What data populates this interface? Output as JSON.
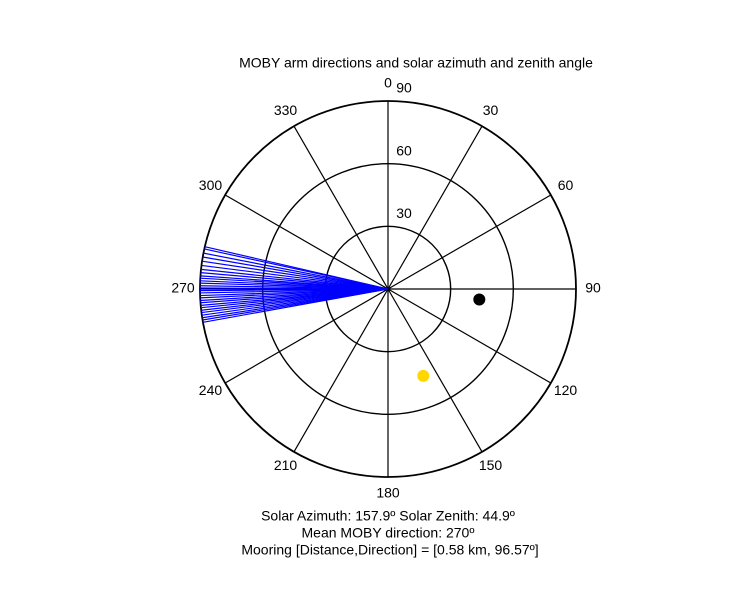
{
  "chart_data": {
    "type": "polar",
    "title": "MOBY arm directions and solar azimuth and zenith angle",
    "rlim": [
      0,
      90
    ],
    "rticks": [
      30,
      60,
      90
    ],
    "thetaticks": [
      0,
      30,
      60,
      90,
      120,
      150,
      180,
      210,
      240,
      270,
      300,
      330
    ],
    "arms": {
      "color": "#0000ff",
      "theta": [
        259.8,
        260.5,
        261.2,
        262,
        262.8,
        263.5,
        264.3,
        265,
        265.8,
        266.5,
        267.3,
        268,
        268.8,
        269.5,
        270.3,
        271,
        271.8,
        272.5,
        273.3,
        274,
        275,
        276,
        277.2,
        278.5,
        279.8,
        281,
        282.3,
        283
      ]
    },
    "points": [
      {
        "color": "#000000",
        "theta": 96.57,
        "r": 44
      },
      {
        "color": "#ffd700",
        "theta": 157.9,
        "r": 44.9
      }
    ],
    "annotations": [
      "Solar Azimuth: 157.9º   Solar Zenith: 44.9º",
      "Mean MOBY direction: 270º",
      "Mooring [Distance,Direction] = [0.58 km, 96.57º]"
    ]
  }
}
